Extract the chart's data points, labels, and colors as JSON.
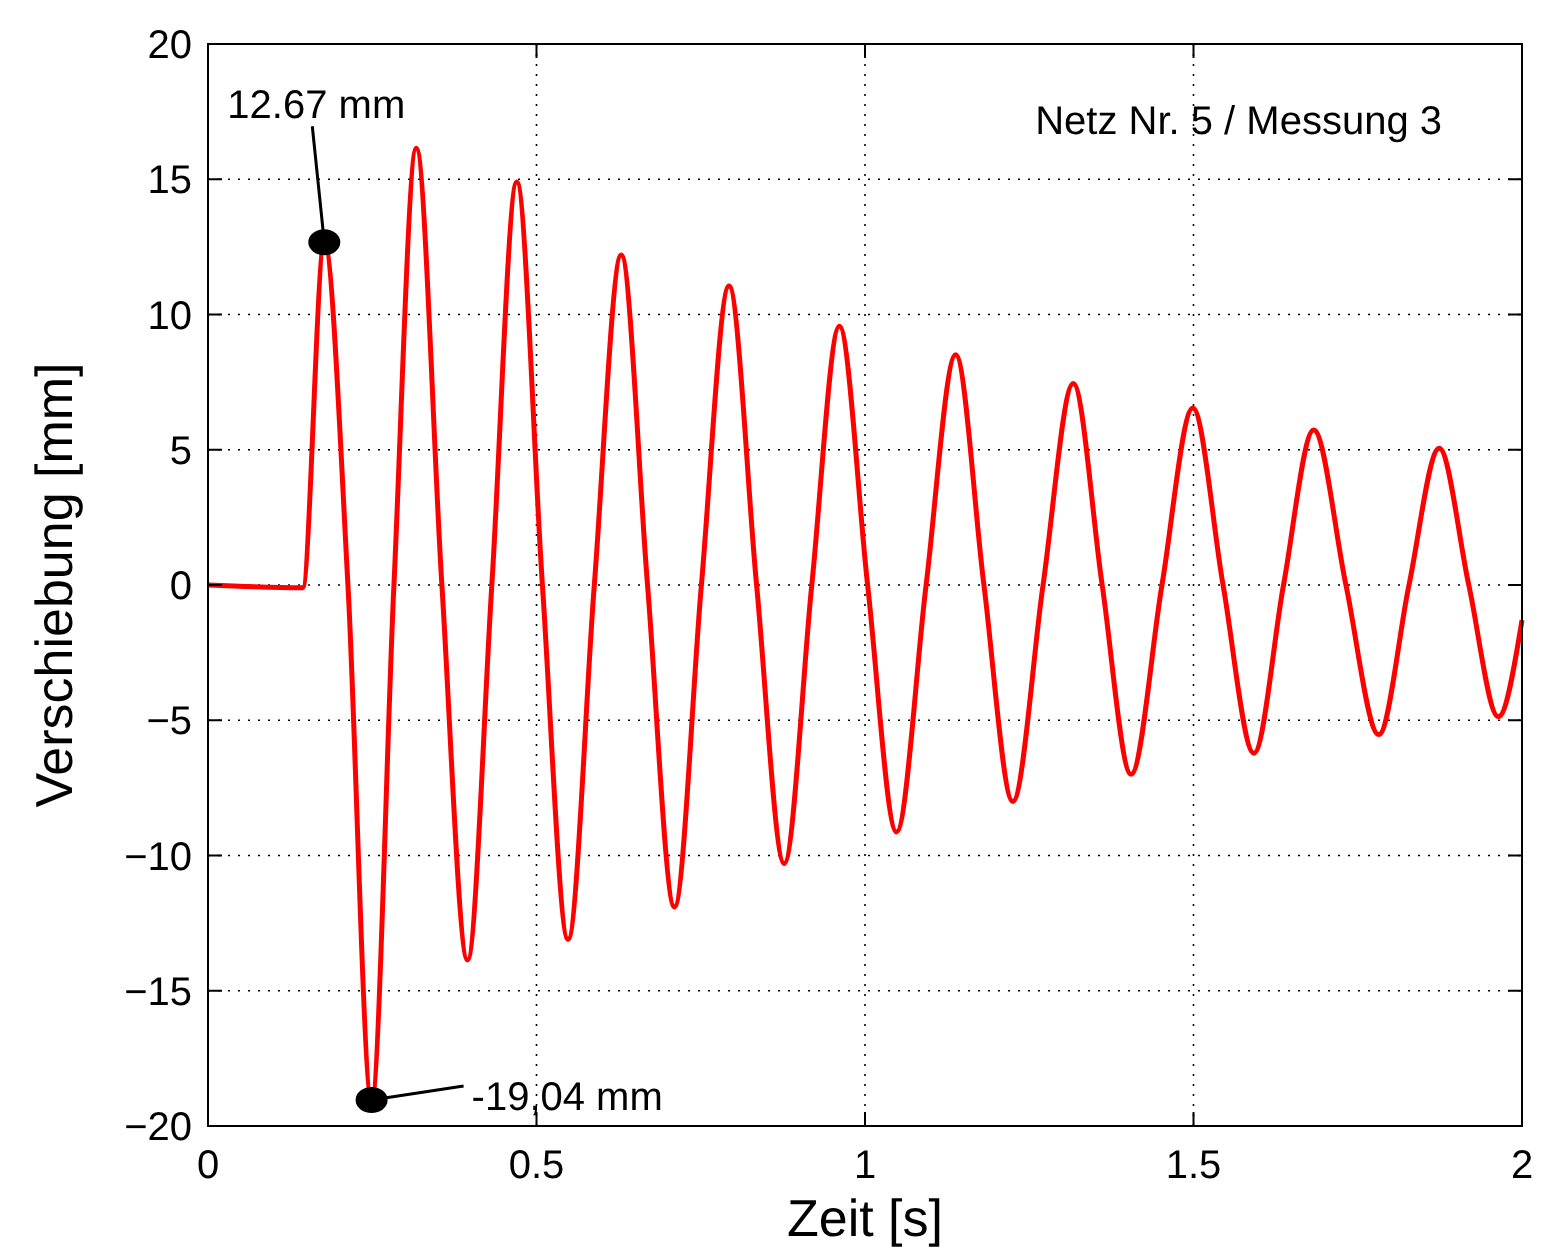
{
  "chart_data": {
    "type": "line",
    "xlabel": "Zeit [s]",
    "ylabel": "Verschiebung [mm]",
    "xlim": [
      0,
      2
    ],
    "ylim": [
      -20,
      20
    ],
    "xticks": [
      0,
      0.5,
      1,
      1.5,
      2
    ],
    "yticks": [
      {
        "value": -20,
        "label": "−20"
      },
      {
        "value": -15,
        "label": "−15"
      },
      {
        "value": -10,
        "label": "−10"
      },
      {
        "value": -5,
        "label": "−5"
      },
      0,
      5,
      10,
      15,
      20
    ],
    "grid": true,
    "line_style": "solid",
    "series": [
      {
        "color": "#ff0000",
        "x": [
          0,
          0.144,
          0.177,
          0.213,
          0.249,
          0.283,
          0.317,
          0.356,
          0.395,
          0.432,
          0.47,
          0.509,
          0.548,
          0.588,
          0.629,
          0.669,
          0.71,
          0.751,
          0.793,
          0.835,
          0.877,
          0.919,
          0.961,
          1.004,
          1.048,
          1.093,
          1.138,
          1.181,
          1.225,
          1.271,
          1.317,
          1.361,
          1.405,
          1.452,
          1.499,
          1.545,
          1.592,
          1.637,
          1.683,
          1.732,
          1.782,
          1.828,
          1.874,
          1.919,
          1.964,
          2
        ],
        "values": [
          0,
          -0.1,
          12.67,
          0,
          -19.04,
          0,
          16.15,
          0,
          -13.86,
          0,
          14.9,
          0,
          -13.1,
          0,
          12.2,
          0,
          -11.9,
          0,
          11.05,
          0,
          -10.3,
          0,
          9.57,
          0,
          -9.13,
          0,
          8.51,
          0,
          -8.0,
          0,
          7.45,
          0,
          -7.0,
          0,
          6.54,
          0,
          -6.22,
          0,
          5.73,
          0,
          -5.53,
          0,
          5.06,
          0,
          -4.87,
          -1.3
        ]
      }
    ],
    "annotations": [
      "Netz Nr. 5 / Messung 3",
      {
        "text": "12.67 mm",
        "x": 0.177,
        "y": 12.67
      },
      {
        "text": "-19,04 mm",
        "x": 0.249,
        "y": -19.04
      }
    ]
  }
}
